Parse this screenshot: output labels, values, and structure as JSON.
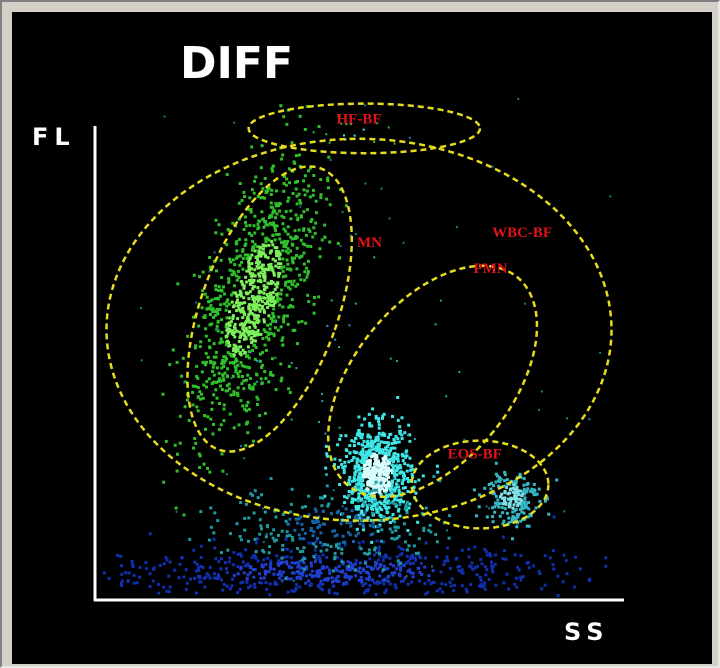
{
  "chart_data": {
    "type": "scatter",
    "title": "DIFF",
    "ylabel": "FL",
    "xlabel": "SS",
    "xlim": [
      0,
      100
    ],
    "ylim": [
      0,
      100
    ],
    "grid": false,
    "colors": {
      "background": "#000000",
      "axis": "#ffffff",
      "gate_line": "#e6dc1e",
      "gate_label": "#e0121a",
      "mononuclear": "#2fbf2a",
      "mononuclear_core": "#7cf05a",
      "neutrophil": "#3fe6e6",
      "neutrophil_core": "#d8ffff",
      "eosinophil": "#35b6c2",
      "debris": "#1030b0",
      "debris_mid": "#1e9aa0"
    },
    "gates": [
      {
        "label": "HF-BF",
        "center": [
          51,
          91
        ],
        "radius": [
          22,
          4.8
        ],
        "rotate": 0,
        "label_pos": [
          50,
          92
        ]
      },
      {
        "label": "WBC-BF",
        "center": [
          50,
          52
        ],
        "radius": [
          48,
          37
        ],
        "rotate": 0,
        "label_pos": [
          81,
          70
        ]
      },
      {
        "label": "MN",
        "center": [
          33,
          56
        ],
        "radius": [
          13,
          29
        ],
        "rotate": 20,
        "label_pos": [
          52,
          68
        ]
      },
      {
        "label": "PMN",
        "center": [
          64,
          42
        ],
        "radius": [
          15,
          26
        ],
        "rotate": 39,
        "label_pos": [
          75,
          63
        ]
      },
      {
        "label": "EOS-BF",
        "center": [
          73,
          22
        ],
        "radius": [
          13,
          8.5
        ],
        "rotate": 0,
        "label_pos": [
          72,
          27
        ]
      }
    ],
    "series": [
      {
        "name": "MN",
        "center": [
          30,
          58
        ],
        "spread": [
          4.5,
          13
        ],
        "rotate": 18,
        "count": 1100,
        "marker": 3
      },
      {
        "name": "PMN",
        "center": [
          53.5,
          24
        ],
        "spread": [
          3.2,
          4.5
        ],
        "rotate": 0,
        "count": 750,
        "marker": 3
      },
      {
        "name": "EOS-BF",
        "center": [
          79,
          19.5
        ],
        "spread": [
          2.6,
          2.8
        ],
        "rotate": 0,
        "count": 190,
        "marker": 3
      },
      {
        "name": "Debris",
        "center": [
          45,
          5
        ],
        "spread": [
          22,
          2.5
        ],
        "rotate": 0,
        "count": 650,
        "marker": 3
      },
      {
        "name": "Debris-upper",
        "center": [
          45,
          14
        ],
        "spread": [
          10,
          4
        ],
        "rotate": 0,
        "count": 260,
        "marker": 3
      },
      {
        "name": "Scatter",
        "center": [
          50,
          45
        ],
        "spread": [
          25,
          25
        ],
        "rotate": 0,
        "count": 90,
        "marker": 2
      },
      {
        "name": "HF-BF",
        "center": [
          49,
          90
        ],
        "spread": [
          4,
          1.5
        ],
        "rotate": 0,
        "count": 14,
        "marker": 2
      }
    ]
  }
}
